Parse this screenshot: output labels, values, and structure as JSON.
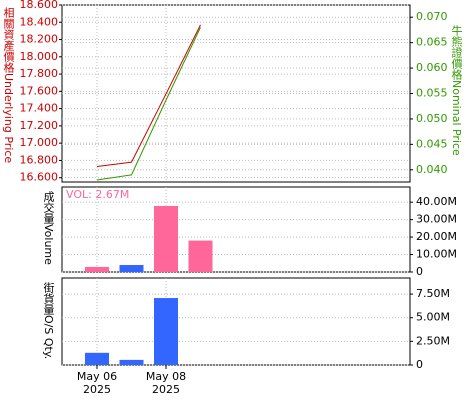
{
  "chart_data": [
    {
      "type": "line",
      "y_label": "相關資產價格Underlying Price",
      "y2_label": "牛熊證價格Nominal Price",
      "series": [
        {
          "name": "Underlying Price",
          "color": "#cc0000",
          "values": [
            16.73,
            16.78,
            17.57,
            18.37
          ]
        },
        {
          "name": "Nominal Price",
          "color": "#339900",
          "axis": "y2",
          "values": [
            0.038,
            0.039,
            0.0537,
            0.068
          ]
        }
      ],
      "ylim": [
        16.55,
        18.6
      ],
      "yticks": [
        {
          "value": 16.6,
          "label": "16.600"
        },
        {
          "value": 16.8,
          "label": "16.800"
        },
        {
          "value": 17.0,
          "label": "17.000"
        },
        {
          "value": 17.2,
          "label": "17.200"
        },
        {
          "value": 17.4,
          "label": "17.400"
        },
        {
          "value": 17.6,
          "label": "17.600"
        },
        {
          "value": 17.8,
          "label": "17.800"
        },
        {
          "value": 18.0,
          "label": "18.000"
        },
        {
          "value": 18.2,
          "label": "18.200"
        },
        {
          "value": 18.4,
          "label": "18.400"
        },
        {
          "value": 18.6,
          "label": "18.600"
        }
      ],
      "y2lim": [
        0.0376,
        0.0724
      ],
      "y2ticks": [
        {
          "value": 0.04,
          "label": "0.040"
        },
        {
          "value": 0.045,
          "label": "0.045"
        },
        {
          "value": 0.05,
          "label": "0.050"
        },
        {
          "value": 0.055,
          "label": "0.055"
        },
        {
          "value": 0.06,
          "label": "0.060"
        },
        {
          "value": 0.065,
          "label": "0.065"
        },
        {
          "value": 0.07,
          "label": "0.070"
        }
      ],
      "grid": true
    },
    {
      "type": "bar",
      "y_label": "成交量Volume",
      "annotation": "VOL: 2.67M",
      "values": [
        2.9,
        4.0,
        37.8,
        18.0
      ],
      "colors": [
        "#ff6699",
        "#3366ff",
        "#ff6699",
        "#ff6699"
      ],
      "ylim": [
        0,
        48.7
      ],
      "yticks": [
        0,
        {
          "value": 10,
          "label": "10.00M"
        },
        {
          "value": 20,
          "label": "20.00M"
        },
        {
          "value": 30,
          "label": "30.00M"
        },
        {
          "value": 40,
          "label": "40.00M"
        }
      ],
      "grid": true
    },
    {
      "type": "bar",
      "y_label": "街貨量O/S Qty.",
      "values": [
        1.29,
        0.54,
        7.08,
        null
      ],
      "colors": [
        "#3366ff",
        "#3366ff",
        "#3366ff",
        "#3366ff"
      ],
      "ylim": [
        0,
        9.2
      ],
      "yticks": [
        0,
        {
          "value": 2.5,
          "label": "2.50M"
        },
        {
          "value": 5,
          "label": "5.00M"
        },
        {
          "value": 7.5,
          "label": "7.50M"
        }
      ],
      "grid": true,
      "categories": [
        "May 06",
        null,
        "May 08",
        null
      ],
      "category_years": [
        "2025",
        null,
        "2025",
        null
      ]
    }
  ]
}
